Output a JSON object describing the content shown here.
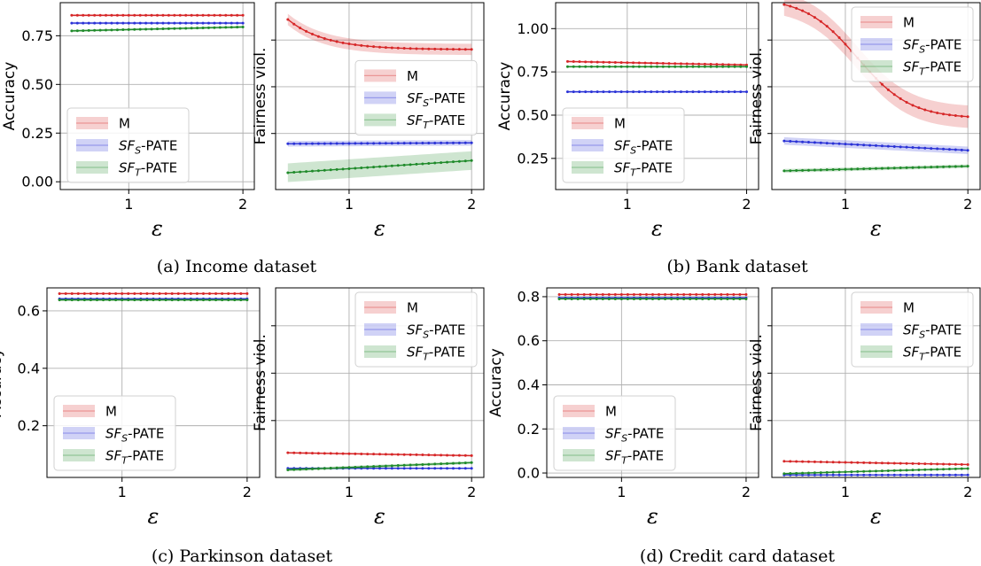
{
  "figure": {
    "captions": {
      "a": "(a) Income dataset",
      "b": "(b) Bank dataset",
      "c": "(c) Parkinson dataset",
      "d": "(d) Credit card dataset"
    }
  },
  "chart_data": [
    {
      "id": "a-accuracy",
      "group": "a",
      "type": "line",
      "xlabel": "ε",
      "ylabel": "Accuracy",
      "xlim": [
        0.4,
        2.1
      ],
      "ylim": [
        -0.04,
        0.92
      ],
      "xticks": [
        1,
        2
      ],
      "xtick_labels": [
        "1",
        "2"
      ],
      "yticks": [
        0.0,
        0.25,
        0.5,
        0.75
      ],
      "ytick_labels": [
        "0.00",
        "0.25",
        "0.50",
        "0.75"
      ],
      "grid": true,
      "legend_position": "lower-left",
      "series": [
        {
          "name": "M",
          "color": "#d62728",
          "start": 0.855,
          "end": 0.855,
          "band": 0.006
        },
        {
          "name": "SFS-PATE",
          "color": "#2a32d6",
          "start": 0.815,
          "end": 0.815,
          "band": 0.006
        },
        {
          "name": "SFT-PATE",
          "color": "#1f8a2a",
          "start": 0.775,
          "end": 0.795,
          "band": 0.006
        }
      ]
    },
    {
      "id": "a-fairness",
      "group": "a",
      "type": "line",
      "xlabel": "ε",
      "ylabel": "Fairness viol.",
      "xlim": [
        0.4,
        2.1
      ],
      "ylim": [
        0.0,
        1.0
      ],
      "xticks": [
        1,
        2
      ],
      "xtick_labels": [
        "1",
        "2"
      ],
      "yticks": [],
      "ytick_labels": [],
      "grid": true,
      "legend_position": "right-middle",
      "series": [
        {
          "name": "M",
          "color": "#d62728",
          "shape": "decay",
          "start": 0.91,
          "end": 0.75,
          "k": 5,
          "band": 0.03
        },
        {
          "name": "SFS-PATE",
          "color": "#2a32d6",
          "start": 0.245,
          "end": 0.25,
          "band": 0.015
        },
        {
          "name": "SFT-PATE",
          "color": "#1f8a2a",
          "start": 0.09,
          "end": 0.155,
          "band": 0.05
        }
      ]
    },
    {
      "id": "b-accuracy",
      "group": "b",
      "type": "line",
      "xlabel": "ε",
      "ylabel": "Accuracy",
      "xlim": [
        0.4,
        2.1
      ],
      "ylim": [
        0.07,
        1.15
      ],
      "xticks": [
        1,
        2
      ],
      "xtick_labels": [
        "1",
        "2"
      ],
      "yticks": [
        0.25,
        0.5,
        0.75,
        1.0
      ],
      "ytick_labels": [
        "0.25",
        "0.50",
        "0.75",
        "1.00"
      ],
      "grid": true,
      "legend_position": "lower-left",
      "series": [
        {
          "name": "M",
          "color": "#d62728",
          "start": 0.81,
          "end": 0.79,
          "band": 0.006
        },
        {
          "name": "SFS-PATE",
          "color": "#2a32d6",
          "start": 0.635,
          "end": 0.635,
          "band": 0.005
        },
        {
          "name": "SFT-PATE",
          "color": "#1f8a2a",
          "start": 0.78,
          "end": 0.78,
          "band": 0.006
        }
      ]
    },
    {
      "id": "b-fairness",
      "group": "b",
      "type": "line",
      "xlabel": "ε",
      "ylabel": "Fairness viol.",
      "xlim": [
        0.4,
        2.1
      ],
      "ylim": [
        0.0,
        1.0
      ],
      "xticks": [
        1,
        2
      ],
      "xtick_labels": [
        "1",
        "2"
      ],
      "yticks": [],
      "ytick_labels": [],
      "grid": true,
      "legend_position": "top-right",
      "series": [
        {
          "name": "M",
          "color": "#d62728",
          "shape": "sigmoid",
          "start": 0.99,
          "end": 0.39,
          "band": 0.06
        },
        {
          "name": "SFS-PATE",
          "color": "#2a32d6",
          "start": 0.26,
          "end": 0.21,
          "band": 0.02
        },
        {
          "name": "SFT-PATE",
          "color": "#1f8a2a",
          "start": 0.1,
          "end": 0.125,
          "band": 0.01
        }
      ]
    },
    {
      "id": "c-accuracy",
      "group": "c",
      "type": "line",
      "xlabel": "ε",
      "ylabel": "Accuracy",
      "xlim": [
        0.4,
        2.1
      ],
      "ylim": [
        0.02,
        0.68
      ],
      "xticks": [
        1,
        2
      ],
      "xtick_labels": [
        "1",
        "2"
      ],
      "yticks": [
        0.2,
        0.4,
        0.6
      ],
      "ytick_labels": [
        "0.2",
        "0.4",
        "0.6"
      ],
      "grid": true,
      "legend_position": "lower-left",
      "series": [
        {
          "name": "M",
          "color": "#d62728",
          "start": 0.66,
          "end": 0.66,
          "band": 0.003
        },
        {
          "name": "SFS-PATE",
          "color": "#2a32d6",
          "start": 0.642,
          "end": 0.642,
          "band": 0.003
        },
        {
          "name": "SFT-PATE",
          "color": "#1f8a2a",
          "start": 0.638,
          "end": 0.638,
          "band": 0.003
        }
      ]
    },
    {
      "id": "c-fairness",
      "group": "c",
      "type": "line",
      "xlabel": "ε",
      "ylabel": "Fairness viol.",
      "xlim": [
        0.4,
        2.1
      ],
      "ylim": [
        0.0,
        1.0
      ],
      "xticks": [
        1,
        2
      ],
      "xtick_labels": [
        "1",
        "2"
      ],
      "yticks": [],
      "ytick_labels": [],
      "grid": true,
      "legend_position": "top-right",
      "series": [
        {
          "name": "M",
          "color": "#d62728",
          "start": 0.13,
          "end": 0.115,
          "band": 0.005
        },
        {
          "name": "SFS-PATE",
          "color": "#2a32d6",
          "start": 0.048,
          "end": 0.048,
          "band": 0.004
        },
        {
          "name": "SFT-PATE",
          "color": "#1f8a2a",
          "start": 0.04,
          "end": 0.078,
          "band": 0.008
        }
      ]
    },
    {
      "id": "d-accuracy",
      "group": "d",
      "type": "line",
      "xlabel": "ε",
      "ylabel": "Accuracy",
      "xlim": [
        0.4,
        2.1
      ],
      "ylim": [
        -0.02,
        0.84
      ],
      "xticks": [
        1,
        2
      ],
      "xtick_labels": [
        "1",
        "2"
      ],
      "yticks": [
        0.0,
        0.2,
        0.4,
        0.6,
        0.8
      ],
      "ytick_labels": [
        "0.0",
        "0.2",
        "0.4",
        "0.6",
        "0.8"
      ],
      "grid": true,
      "legend_position": "lower-left",
      "series": [
        {
          "name": "M",
          "color": "#d62728",
          "start": 0.81,
          "end": 0.81,
          "band": 0.003
        },
        {
          "name": "SFS-PATE",
          "color": "#2a32d6",
          "start": 0.795,
          "end": 0.795,
          "band": 0.003
        },
        {
          "name": "SFT-PATE",
          "color": "#1f8a2a",
          "start": 0.79,
          "end": 0.79,
          "band": 0.003
        }
      ]
    },
    {
      "id": "d-fairness",
      "group": "d",
      "type": "line",
      "xlabel": "ε",
      "ylabel": "Fairness viol.",
      "xlim": [
        0.4,
        2.1
      ],
      "ylim": [
        0.0,
        1.0
      ],
      "xticks": [
        1,
        2
      ],
      "xtick_labels": [
        "1",
        "2"
      ],
      "yticks": [],
      "ytick_labels": [],
      "grid": true,
      "legend_position": "top-right",
      "series": [
        {
          "name": "M",
          "color": "#d62728",
          "start": 0.085,
          "end": 0.068,
          "band": 0.004
        },
        {
          "name": "SFS-PATE",
          "color": "#2a32d6",
          "start": 0.013,
          "end": 0.013,
          "band": 0.003
        },
        {
          "name": "SFT-PATE",
          "color": "#1f8a2a",
          "start": 0.02,
          "end": 0.047,
          "band": 0.005
        }
      ]
    }
  ],
  "legend": {
    "entries": [
      {
        "key": "M",
        "base": "M",
        "sub": ""
      },
      {
        "key": "SFS-PATE",
        "base": "SF",
        "sub": "S",
        "suffix": "-PATE"
      },
      {
        "key": "SFT-PATE",
        "base": "SF",
        "sub": "T",
        "suffix": "-PATE"
      }
    ]
  }
}
